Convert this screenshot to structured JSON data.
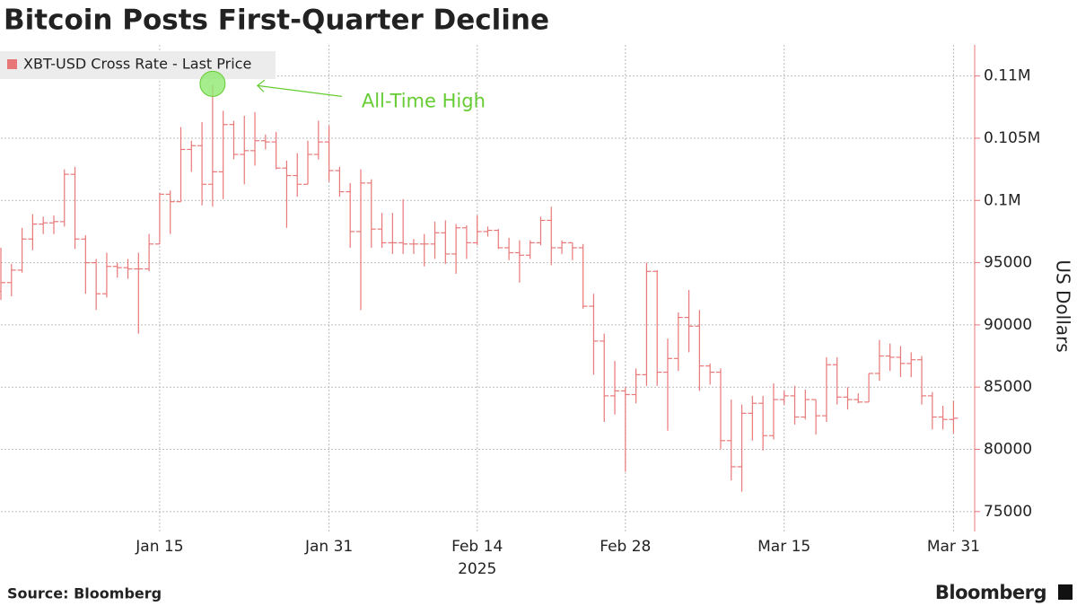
{
  "chart_data": {
    "type": "ohlc",
    "title": "Bitcoin Posts First-Quarter Decline",
    "y_label": "US Dollars",
    "x_sublabel": "2025",
    "source": "Source: Bloomberg",
    "brand": "Bloomberg",
    "x": [
      "2024-12-31",
      "2025-01-01",
      "2025-01-02",
      "2025-01-03",
      "2025-01-04",
      "2025-01-05",
      "2025-01-06",
      "2025-01-07",
      "2025-01-08",
      "2025-01-09",
      "2025-01-10",
      "2025-01-11",
      "2025-01-12",
      "2025-01-13",
      "2025-01-14",
      "2025-01-15",
      "2025-01-16",
      "2025-01-17",
      "2025-01-18",
      "2025-01-19",
      "2025-01-20",
      "2025-01-21",
      "2025-01-22",
      "2025-01-23",
      "2025-01-24",
      "2025-01-25",
      "2025-01-26",
      "2025-01-27",
      "2025-01-28",
      "2025-01-29",
      "2025-01-30",
      "2025-01-31",
      "2025-02-01",
      "2025-02-02",
      "2025-02-03",
      "2025-02-04",
      "2025-02-05",
      "2025-02-06",
      "2025-02-07",
      "2025-02-08",
      "2025-02-09",
      "2025-02-10",
      "2025-02-11",
      "2025-02-12",
      "2025-02-13",
      "2025-02-14",
      "2025-02-15",
      "2025-02-16",
      "2025-02-17",
      "2025-02-18",
      "2025-02-19",
      "2025-02-20",
      "2025-02-21",
      "2025-02-22",
      "2025-02-23",
      "2025-02-24",
      "2025-02-25",
      "2025-02-26",
      "2025-02-27",
      "2025-02-28",
      "2025-03-01",
      "2025-03-02",
      "2025-03-03",
      "2025-03-04",
      "2025-03-05",
      "2025-03-06",
      "2025-03-07",
      "2025-03-08",
      "2025-03-09",
      "2025-03-10",
      "2025-03-11",
      "2025-03-12",
      "2025-03-13",
      "2025-03-14",
      "2025-03-15",
      "2025-03-16",
      "2025-03-17",
      "2025-03-18",
      "2025-03-19",
      "2025-03-20",
      "2025-03-21",
      "2025-03-22",
      "2025-03-23",
      "2025-03-24",
      "2025-03-25",
      "2025-03-26",
      "2025-03-27",
      "2025-03-28",
      "2025-03-29",
      "2025-03-30",
      "2025-03-31"
    ],
    "series": [
      {
        "name": "XBT-USD Cross Rate - Last Price",
        "color": "#e87878",
        "open": [
          92700,
          93400,
          94400,
          96900,
          98100,
          98200,
          98300,
          102100,
          96900,
          95000,
          92500,
          94700,
          94600,
          94500,
          94500,
          96500,
          100500,
          99900,
          104100,
          104400,
          101300,
          102300,
          106100,
          103700,
          104000,
          104800,
          104700,
          102600,
          102000,
          101300,
          103700,
          104700,
          102400,
          100700,
          97500,
          101400,
          97700,
          96600,
          96600,
          96500,
          96500,
          96500,
          97400,
          95700,
          97800,
          96600,
          97500,
          97600,
          96200,
          95800,
          95600,
          96600,
          98400,
          96200,
          96600,
          96200,
          91500,
          88700,
          84300,
          84700,
          84400,
          86000,
          94300,
          86200,
          87300,
          90600,
          89900,
          86700,
          86200,
          80700,
          78600,
          82900,
          83700,
          81100,
          84000,
          84300,
          82600,
          84000,
          82700,
          86800,
          84200,
          84000,
          83800,
          86100,
          87500,
          87400,
          86900,
          87200,
          84300,
          82600,
          82400
        ],
        "high": [
          96200,
          94900,
          97800,
          98900,
          98700,
          98800,
          102500,
          102700,
          97200,
          95300,
          95800,
          95000,
          95300,
          95800,
          97300,
          100600,
          100800,
          105900,
          104800,
          106300,
          109300,
          107200,
          106400,
          106800,
          107100,
          105300,
          105500,
          103200,
          103800,
          104800,
          106400,
          106000,
          102700,
          101400,
          102500,
          101700,
          99000,
          99000,
          100100,
          96900,
          97300,
          98300,
          98400,
          98100,
          98000,
          98800,
          97900,
          97700,
          97000,
          96800,
          96800,
          98700,
          99500,
          96800,
          96600,
          96500,
          92500,
          89300,
          87100,
          85000,
          86500,
          95000,
          94400,
          88900,
          91000,
          92800,
          91200,
          86900,
          86500,
          84000,
          83600,
          84300,
          84300,
          85300,
          84700,
          85100,
          84800,
          84000,
          87400,
          87400,
          85000,
          84500,
          86100,
          88800,
          88500,
          88300,
          87800,
          87500,
          84600,
          83500,
          83900
        ],
        "low": [
          92000,
          92300,
          94200,
          96000,
          97300,
          97300,
          97900,
          96100,
          92500,
          91200,
          92200,
          93800,
          93700,
          89300,
          94300,
          96500,
          97300,
          99900,
          102300,
          99600,
          99500,
          100100,
          103300,
          101300,
          102800,
          104100,
          102500,
          97800,
          100300,
          101300,
          103300,
          101500,
          100300,
          96200,
          91200,
          96200,
          96200,
          95700,
          95700,
          95700,
          94700,
          95300,
          94900,
          94100,
          95300,
          96400,
          97100,
          96100,
          95200,
          93400,
          95300,
          96400,
          94800,
          95700,
          95200,
          91300,
          86000,
          82200,
          82800,
          78200,
          83700,
          85100,
          85100,
          81500,
          86300,
          87800,
          84700,
          85200,
          80000,
          77500,
          76600,
          80700,
          79900,
          80800,
          83600,
          82000,
          82400,
          81200,
          82200,
          83600,
          83200,
          83700,
          83800,
          85500,
          86300,
          85800,
          85800,
          83600,
          81600,
          81600,
          81300
        ],
        "close": [
          93400,
          94400,
          96900,
          98100,
          98200,
          98300,
          102100,
          96900,
          95000,
          92500,
          94700,
          94600,
          94500,
          94500,
          96500,
          100500,
          99900,
          104100,
          104400,
          101300,
          102300,
          106100,
          103700,
          104000,
          104800,
          104700,
          102600,
          102000,
          101300,
          103700,
          104700,
          102400,
          100700,
          97500,
          101400,
          97700,
          96600,
          96600,
          96500,
          96500,
          96500,
          97400,
          95700,
          97800,
          96600,
          97500,
          97600,
          96200,
          95800,
          95600,
          96600,
          98400,
          96200,
          96600,
          96200,
          91500,
          88700,
          84300,
          84700,
          84400,
          86000,
          94300,
          86200,
          87300,
          90600,
          89900,
          86700,
          86200,
          80700,
          78600,
          82900,
          83700,
          81100,
          84000,
          84300,
          82600,
          84000,
          82700,
          86800,
          84200,
          84000,
          83800,
          86100,
          87500,
          87400,
          86900,
          87200,
          84300,
          82600,
          82400,
          82500
        ]
      }
    ],
    "annotations": [
      {
        "text": "All-Time High",
        "x": "2025-01-20",
        "y": 109300,
        "color": "#66cc33"
      }
    ],
    "xlim": [
      "2024-12-31",
      "2025-04-02"
    ],
    "xticks": [
      {
        "value": "2025-01-15",
        "label": "Jan 15"
      },
      {
        "value": "2025-01-31",
        "label": "Jan 31"
      },
      {
        "value": "2025-02-14",
        "label": "Feb 14"
      },
      {
        "value": "2025-02-28",
        "label": "Feb 28"
      },
      {
        "value": "2025-03-15",
        "label": "Mar 15"
      },
      {
        "value": "2025-03-31",
        "label": "Mar 31"
      }
    ],
    "ylim": [
      73400,
      112500
    ],
    "yticks": [
      75000,
      80000,
      85000,
      90000,
      95000,
      {
        "value": 100000,
        "label": "0.1M"
      },
      {
        "value": 105000,
        "label": "0.105M"
      },
      {
        "value": 110000,
        "label": "0.11M"
      }
    ],
    "y_axis_side": "right",
    "grid": true,
    "legend": "top-left"
  }
}
